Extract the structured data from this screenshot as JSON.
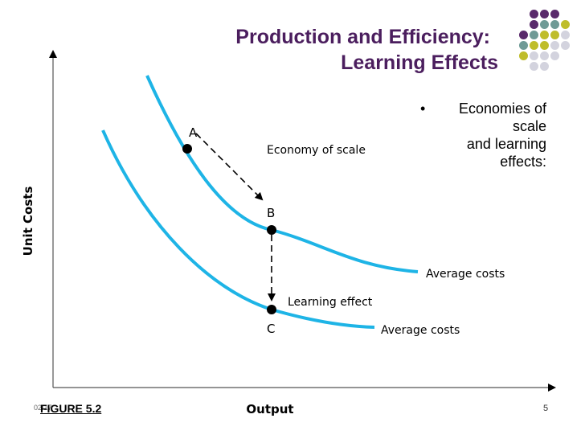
{
  "slide": {
    "title_line1": "Production and Efficiency:",
    "title_line2": "Learning Effects",
    "bullet_text": "Economies of scale and learning effects:",
    "bullet_lines": [
      "Economies of",
      "scale",
      "and learning",
      "effects:"
    ],
    "figure_label": "FIGURE 5.2",
    "date_label": "02/17",
    "page_number": "5"
  },
  "diagram": {
    "y_axis_label": "Unit Costs",
    "x_axis_label": "Output",
    "points": [
      {
        "label": "A"
      },
      {
        "label": "B"
      },
      {
        "label": "C"
      }
    ],
    "annotations": {
      "economy_of_scale": "Economy of scale",
      "learning_effect": "Learning effect"
    },
    "curves": [
      {
        "label": "Average costs",
        "color": "#1eb4e6"
      },
      {
        "label": "Average costs",
        "color": "#1eb4e6"
      }
    ]
  },
  "decor": {
    "dot_colors": [
      "#5a2a6b",
      "#6f9a96",
      "#bfbd2b",
      "#d3d3de"
    ]
  }
}
